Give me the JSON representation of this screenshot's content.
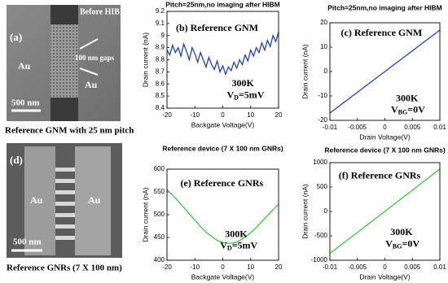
{
  "images": [
    {
      "labels": [
        "(a)",
        "Before HIBM",
        "100 nm gaps",
        "Au",
        "Au",
        "500 nm"
      ],
      "caption": "Reference GNM with 25 nm pitch"
    },
    {
      "labels": [
        "(d)",
        "Au",
        "Au",
        "500 nm"
      ],
      "caption": "Reference GNRs (7 X 100 nm)"
    }
  ],
  "chart_data": [
    {
      "type": "line",
      "title": "Pitch=25nm,no imaging after HIBM",
      "panel_label": "(b) Reference GNM",
      "temperature": "300K",
      "bias": {
        "symbol": "V",
        "subscript": "D",
        "rest": "=5mV"
      },
      "xlabel": "Backgate Voltage(V)",
      "ylabel": "Drain current (nA)",
      "color": "#1f3fc8",
      "x": [
        -20,
        -19,
        -18,
        -17,
        -16,
        -15,
        -14,
        -13,
        -12,
        -11,
        -10,
        -9,
        -8,
        -7,
        -6,
        -5,
        -4,
        -3,
        -2,
        -1,
        0,
        1,
        2,
        3,
        4,
        5,
        6,
        7,
        8,
        9,
        10,
        11,
        12,
        13,
        14,
        15,
        16,
        17,
        18,
        19,
        20
      ],
      "values": [
        8.88,
        8.84,
        8.92,
        8.86,
        8.9,
        8.83,
        8.93,
        8.87,
        8.8,
        8.9,
        8.85,
        8.78,
        8.86,
        8.8,
        8.74,
        8.82,
        8.76,
        8.72,
        8.79,
        8.7,
        8.75,
        8.68,
        8.74,
        8.71,
        8.78,
        8.73,
        8.8,
        8.76,
        8.84,
        8.79,
        8.88,
        8.83,
        8.9,
        8.86,
        8.94,
        8.88,
        8.96,
        8.91,
        9.0,
        8.95,
        9.03
      ],
      "xlim": [
        -20,
        20
      ],
      "xticks": [
        -20,
        -10,
        0,
        10,
        20
      ],
      "ylim": [
        8.4,
        9.2
      ],
      "yticks": [
        8.4,
        8.5,
        8.6,
        8.7,
        8.8,
        8.9,
        9,
        9.1,
        9.2
      ]
    },
    {
      "type": "line",
      "title": "Pitch=25nm,no imaging after HIBM",
      "panel_label": "(c) Reference GNM",
      "temperature": "300K",
      "bias": {
        "symbol": "V",
        "subscript": "BG",
        "rest": "=0V"
      },
      "xlabel": "Drain Voltage(V)",
      "ylabel": "Drain current (nA)",
      "color": "#1f3fc8",
      "x": [
        -0.01,
        0,
        0.01
      ],
      "values": [
        -17,
        0,
        17
      ],
      "xlim": [
        -0.01,
        0.01
      ],
      "xticks": [
        -0.01,
        -0.005,
        0,
        0.005,
        0.01
      ],
      "ylim": [
        -20,
        20
      ],
      "yticks": [
        -20,
        -10,
        0,
        10,
        20
      ]
    },
    {
      "type": "line",
      "title": "Reference device (7 X 100 nm GNRs)",
      "panel_label": "(e) Reference GNRs",
      "temperature": "300K",
      "bias": {
        "symbol": "V",
        "subscript": "D",
        "rest": "=5mV"
      },
      "xlabel": "Backgate Voltage(V)",
      "ylabel": "Drain current (nA)",
      "color": "#3cc83c",
      "x": [
        -20,
        -18,
        -16,
        -14,
        -12,
        -10,
        -8,
        -6,
        -4,
        -2,
        0,
        2,
        4,
        6,
        8,
        10,
        12,
        14,
        16,
        18,
        20
      ],
      "values": [
        555,
        543,
        530,
        516,
        502,
        488,
        474,
        462,
        452,
        444,
        439,
        437,
        438,
        443,
        451,
        460,
        472,
        485,
        498,
        511,
        523
      ],
      "xlim": [
        -20,
        20
      ],
      "xticks": [
        -20,
        -10,
        0,
        10,
        20
      ],
      "ylim": [
        400,
        600
      ],
      "yticks": [
        400,
        450,
        500,
        550,
        600
      ]
    },
    {
      "type": "line",
      "title": "Reference device (7 X 100 nm GNRs)",
      "panel_label": "(f) Reference GNRs",
      "temperature": "300K",
      "bias": {
        "symbol": "V",
        "subscript": "BG",
        "rest": "=0V"
      },
      "xlabel": "Drain Voltage(V)",
      "ylabel": "Drain current (nA)",
      "color": "#3cc83c",
      "x": [
        -0.01,
        0,
        0.01
      ],
      "values": [
        -860,
        0,
        870
      ],
      "xlim": [
        -0.01,
        0.01
      ],
      "xticks": [
        -0.01,
        -0.005,
        0,
        0.005,
        0.01
      ],
      "ylim": [
        -1000,
        1000
      ],
      "yticks": [
        -1000,
        -500,
        0,
        500,
        1000
      ]
    }
  ]
}
